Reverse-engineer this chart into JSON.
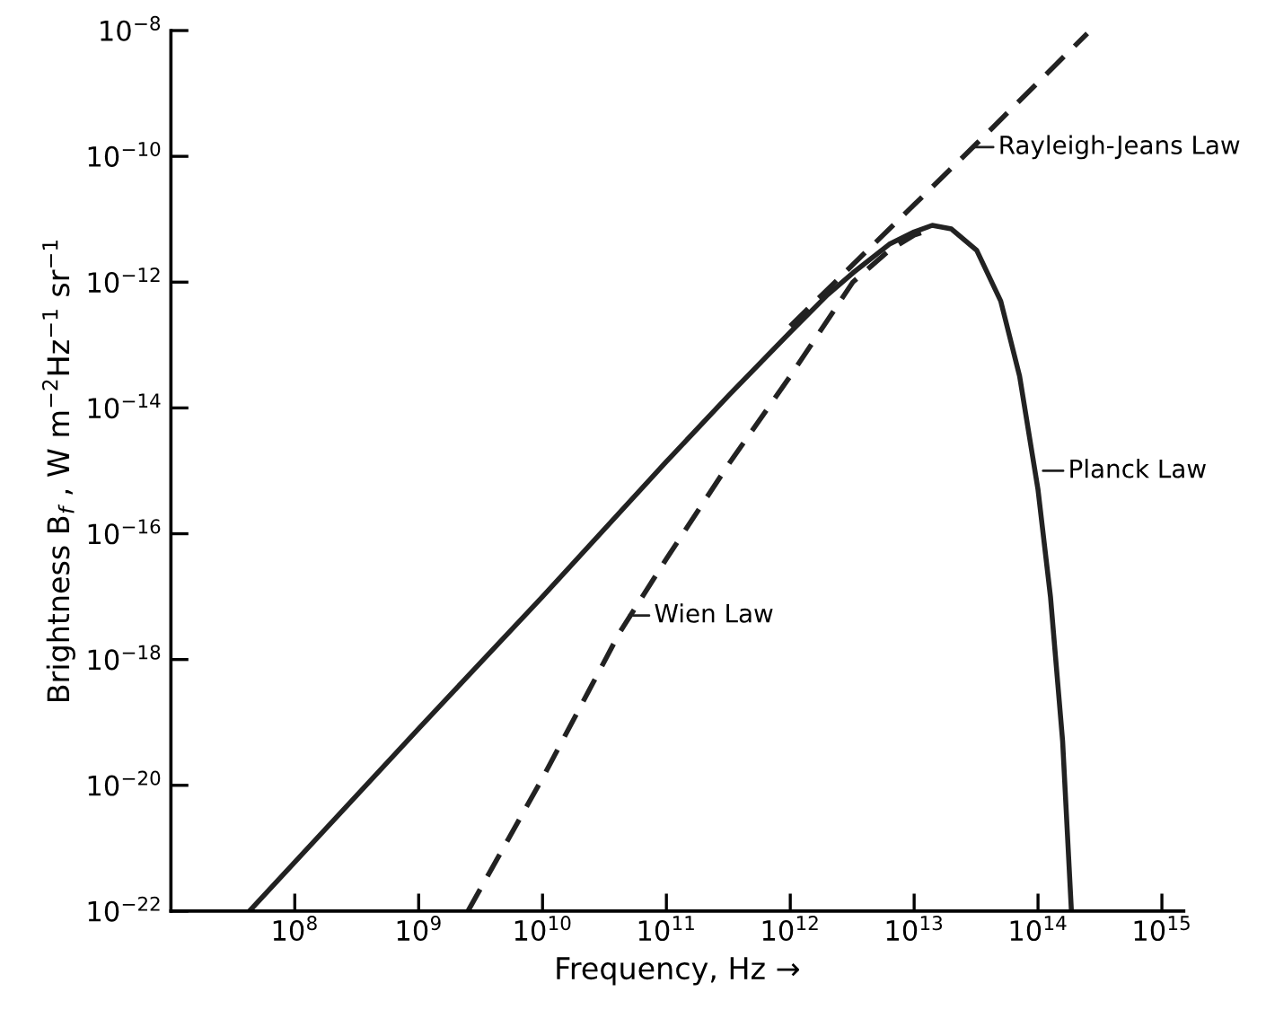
{
  "chart_data": {
    "type": "line",
    "xlabel": "Frequency, Hz →",
    "ylabel": "Brightness B$_{f}$ , W m$^{−2}$Hz$^{−1}$ sr$^{−1}$",
    "log": "xy",
    "xlim": [
      10000000.0,
      1500000000000000.0
    ],
    "ylim": [
      1e-22,
      1e-08
    ],
    "xticks": [
      {
        "value": 100000000.0,
        "label": "10$^{8}$"
      },
      {
        "value": 1000000000.0,
        "label": "10$^{9}$"
      },
      {
        "value": 10000000000.0,
        "label": "10$^{10}$"
      },
      {
        "value": 100000000000.0,
        "label": "10$^{11}$"
      },
      {
        "value": 1000000000000.0,
        "label": "10$^{12}$"
      },
      {
        "value": 10000000000000.0,
        "label": "10$^{13}$"
      },
      {
        "value": 100000000000000.0,
        "label": "10$^{14}$"
      },
      {
        "value": 1000000000000000.0,
        "label": "10$^{15}$"
      }
    ],
    "yticks": [
      {
        "value": 1e-22,
        "label": "10$^{−22}$"
      },
      {
        "value": 1e-20,
        "label": "10$^{−20}$"
      },
      {
        "value": 1e-18,
        "label": "10$^{−18}$"
      },
      {
        "value": 1e-16,
        "label": "10$^{−16}$"
      },
      {
        "value": 1e-14,
        "label": "10$^{−14}$"
      },
      {
        "value": 1e-12,
        "label": "10$^{−12}$"
      },
      {
        "value": 1e-10,
        "label": "10$^{−10}$"
      },
      {
        "value": 1e-08,
        "label": "10$^{−8}$"
      }
    ],
    "grid": false,
    "marker": "none",
    "series": [
      {
        "color": "#222222",
        "line_style": "solid",
        "x": [
          43000000.0,
          100000000.0,
          1000000000.0,
          10000000000.0,
          100000000000.0,
          320000000000.0,
          1000000000000.0,
          2000000000000.0,
          3200000000000.0,
          6300000000000.0,
          10000000000000.0,
          14000000000000.0,
          20000000000000.0,
          32000000000000.0,
          50000000000000.0,
          71000000000000.0,
          100000000000000.0,
          126000000000000.0,
          158000000000000.0,
          186000000000000.0
        ],
        "values": [
          1e-22,
          6e-22,
          8e-20,
          1e-17,
          1.4e-15,
          1.6e-14,
          1.6e-13,
          6.3e-13,
          1.4e-12,
          4e-12,
          6.3e-12,
          8e-12,
          7e-12,
          3.2e-12,
          5e-13,
          3.2e-14,
          5e-16,
          1e-17,
          5e-20,
          1e-22
        ]
      },
      {
        "color": "#222222",
        "line_style": "dashed",
        "x": [
          1000000000000.0,
          3200000000000.0,
          10000000000000.0,
          32000000000000.0,
          100000000000000.0,
          250000000000000.0
        ],
        "values": [
          2e-13,
          1.9e-12,
          1.7e-11,
          1.6e-10,
          1.5e-09,
          9e-09
        ]
      },
      {
        "color": "#222222",
        "line_style": "dashed",
        "x": [
          2500000000.0,
          10000000000.0,
          42000000000.0,
          100000000000.0,
          320000000000.0,
          1000000000000.0,
          3200000000000.0,
          6300000000000.0,
          10000000000000.0,
          14000000000000.0
        ],
        "values": [
          1e-22,
          1.3e-20,
          2.7e-18,
          4e-17,
          1.3e-15,
          3.2e-14,
          1e-12,
          3.2e-12,
          5.6e-12,
          7e-12
        ]
      }
    ],
    "annotations": [
      {
        "text": "Rayleigh-Jeans Law",
        "x": 30000000000000.0,
        "y": 1.4e-10
      },
      {
        "text": "Planck Law",
        "x": 110000000000000.0,
        "y": 1e-15
      },
      {
        "text": "Wien Law",
        "x": 50000000000.0,
        "y": 5e-18
      }
    ]
  }
}
